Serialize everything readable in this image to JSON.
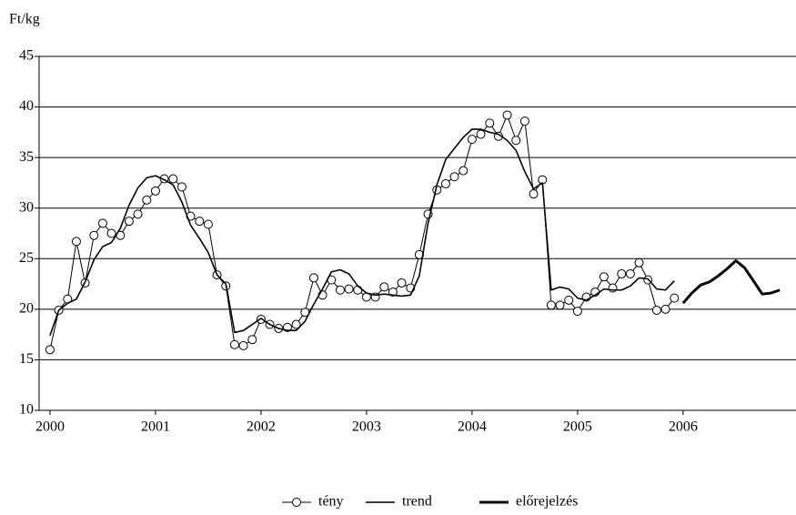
{
  "chart_data": {
    "type": "line",
    "y_label": "Ft/kg",
    "x": [
      2000,
      2000.083,
      2000.167,
      2000.25,
      2000.333,
      2000.417,
      2000.5,
      2000.583,
      2000.667,
      2000.75,
      2000.833,
      2000.917,
      2001,
      2001.083,
      2001.167,
      2001.25,
      2001.333,
      2001.417,
      2001.5,
      2001.583,
      2001.667,
      2001.75,
      2001.833,
      2001.917,
      2002,
      2002.083,
      2002.167,
      2002.25,
      2002.333,
      2002.417,
      2002.5,
      2002.583,
      2002.667,
      2002.75,
      2002.833,
      2002.917,
      2003,
      2003.083,
      2003.167,
      2003.25,
      2003.333,
      2003.417,
      2003.5,
      2003.583,
      2003.667,
      2003.75,
      2003.833,
      2003.917,
      2004,
      2004.083,
      2004.167,
      2004.25,
      2004.333,
      2004.417,
      2004.5,
      2004.583,
      2004.667,
      2004.75,
      2004.833,
      2004.917,
      2005,
      2005.083,
      2005.167,
      2005.25,
      2005.333,
      2005.417,
      2005.5,
      2005.583,
      2005.667,
      2005.75,
      2005.833,
      2005.917,
      2006,
      2006.083,
      2006.167,
      2006.25,
      2006.333,
      2006.417,
      2006.5,
      2006.583,
      2006.667,
      2006.75,
      2006.833,
      2006.917
    ],
    "series": [
      {
        "name": "tény",
        "color": "#000000",
        "marker": "circle",
        "line_width": 1,
        "values": [
          16.0,
          19.9,
          21.0,
          26.7,
          22.6,
          27.3,
          28.5,
          27.5,
          27.3,
          28.7,
          29.4,
          30.8,
          31.7,
          32.9,
          32.9,
          32.1,
          29.2,
          28.7,
          28.4,
          23.4,
          22.3,
          16.5,
          16.4,
          17.0,
          19.0,
          18.5,
          18.1,
          18.2,
          18.5,
          19.7,
          23.1,
          21.4,
          22.9,
          21.9,
          22.0,
          21.9,
          21.2,
          21.2,
          22.2,
          21.7,
          22.6,
          22.1,
          25.4,
          29.4,
          31.8,
          32.4,
          33.1,
          33.7,
          36.8,
          37.3,
          38.4,
          37.1,
          39.2,
          36.7,
          38.6,
          31.4,
          32.8,
          20.4,
          20.4,
          20.9,
          19.8,
          21.2,
          21.7,
          23.2,
          22.1,
          23.5,
          23.5,
          24.6,
          22.9,
          19.9,
          20.0,
          21.1,
          null,
          null,
          null,
          null,
          null,
          null,
          null,
          null,
          null,
          null,
          null,
          null
        ]
      },
      {
        "name": "trend",
        "color": "#000000",
        "line_width": 1.6,
        "values": [
          17.4,
          19.9,
          20.6,
          21.0,
          22.7,
          24.9,
          26.2,
          26.6,
          28.0,
          30.3,
          32.0,
          33.0,
          33.2,
          32.8,
          32.3,
          30.6,
          28.3,
          27.0,
          25.6,
          23.4,
          22.5,
          17.7,
          17.9,
          18.5,
          19.1,
          18.5,
          18.1,
          17.9,
          17.9,
          18.8,
          20.5,
          22.0,
          23.7,
          23.9,
          23.5,
          22.3,
          21.6,
          21.4,
          21.5,
          21.4,
          21.3,
          21.4,
          23.3,
          28.5,
          32.3,
          34.8,
          35.9,
          37.0,
          37.8,
          37.8,
          37.5,
          37.3,
          36.7,
          35.7,
          33.6,
          31.9,
          32.5,
          21.9,
          22.2,
          22.0,
          21.1,
          20.9,
          21.4,
          22.0,
          21.9,
          21.9,
          22.3,
          23.1,
          23.0,
          22.0,
          21.9,
          22.8,
          null,
          null,
          null,
          null,
          null,
          null,
          null,
          null,
          null,
          null,
          null,
          null
        ]
      },
      {
        "name": "előrejelzés",
        "color": "#000000",
        "line_width": 3,
        "values": [
          null,
          null,
          null,
          null,
          null,
          null,
          null,
          null,
          null,
          null,
          null,
          null,
          null,
          null,
          null,
          null,
          null,
          null,
          null,
          null,
          null,
          null,
          null,
          null,
          null,
          null,
          null,
          null,
          null,
          null,
          null,
          null,
          null,
          null,
          null,
          null,
          null,
          null,
          null,
          null,
          null,
          null,
          null,
          null,
          null,
          null,
          null,
          null,
          null,
          null,
          null,
          null,
          null,
          null,
          null,
          null,
          null,
          null,
          null,
          null,
          null,
          null,
          null,
          null,
          null,
          null,
          null,
          null,
          null,
          null,
          null,
          null,
          20.6,
          21.6,
          22.4,
          22.7,
          23.3,
          24.0,
          24.8,
          24.1,
          22.8,
          21.5,
          21.6,
          21.9
        ]
      }
    ],
    "xlim": [
      1999.897,
      2007.07
    ],
    "xticks": [
      2000,
      2001,
      2002,
      2003,
      2004,
      2005,
      2006
    ],
    "ylim": [
      10,
      45
    ],
    "yticks": [
      10,
      15,
      20,
      25,
      30,
      35,
      40,
      45
    ],
    "grid": true,
    "legend": "bottom"
  }
}
